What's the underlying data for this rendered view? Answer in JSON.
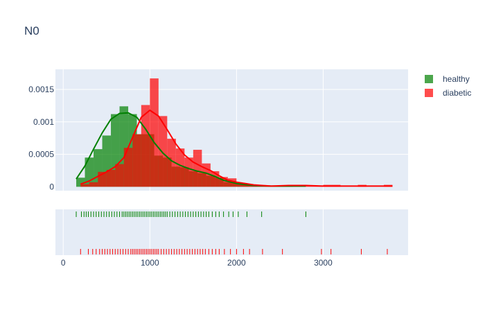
{
  "chart_data": {
    "type": "histogram",
    "title": "N0",
    "xlabel": "",
    "ylabel": "",
    "xlim": [
      -90,
      3980
    ],
    "ylim": [
      -6e-05,
      0.00181
    ],
    "x_ticks": [
      0,
      1000,
      2000,
      3000
    ],
    "x_tick_labels": [
      "0",
      "1000",
      "2000",
      "3000"
    ],
    "y_ticks": [
      0,
      0.0005,
      0.001,
      0.0015
    ],
    "y_tick_labels": [
      "0",
      "0.0005",
      "0.001",
      "0.0015"
    ],
    "grid": true,
    "legend_position": "top-right",
    "bin_width": 100,
    "series": [
      {
        "name": "healthy",
        "color": "#008000",
        "bin_starts": [
          150,
          250,
          350,
          450,
          550,
          650,
          750,
          850,
          950,
          1050,
          1150,
          1250,
          1350,
          1450,
          1550,
          1650,
          1750,
          1850,
          1950,
          2050,
          2150,
          2250,
          2350,
          2450,
          2550
        ],
        "histogram": [
          0.00014,
          0.00045,
          0.00058,
          0.00079,
          0.00112,
          0.00124,
          0.00112,
          0.00081,
          0.00081,
          0.00048,
          0.00045,
          0.00031,
          0.0003,
          0.00024,
          0.00021,
          0.00017,
          0.00014,
          7e-05,
          6e-05,
          3e-05,
          3e-05,
          2e-05,
          1e-05,
          1e-05,
          1e-05
        ],
        "kde_x": [
          150,
          250,
          350,
          450,
          550,
          650,
          750,
          850,
          950,
          1050,
          1150,
          1250,
          1350,
          1450,
          1550,
          1650,
          1750,
          1850,
          2000,
          2200,
          2400,
          2600,
          2800
        ],
        "kde_y": [
          0.00012,
          0.00032,
          0.00058,
          0.00083,
          0.00104,
          0.00113,
          0.00114,
          0.00107,
          0.00089,
          0.00068,
          0.00052,
          0.0004,
          0.00033,
          0.00028,
          0.00024,
          0.00021,
          0.00016,
          0.0001,
          5e-05,
          2e-05,
          1e-05,
          1e-05,
          1e-05
        ],
        "rug": [
          150,
          210,
          240,
          265,
          290,
          320,
          350,
          380,
          410,
          440,
          470,
          500,
          530,
          560,
          590,
          620,
          650,
          680,
          700,
          720,
          740,
          760,
          780,
          800,
          820,
          840,
          860,
          880,
          900,
          920,
          940,
          960,
          980,
          1000,
          1020,
          1040,
          1060,
          1080,
          1100,
          1120,
          1140,
          1160,
          1180,
          1200,
          1230,
          1260,
          1290,
          1320,
          1350,
          1380,
          1410,
          1440,
          1470,
          1500,
          1530,
          1560,
          1590,
          1620,
          1650,
          1680,
          1720,
          1760,
          1800,
          1850,
          1910,
          1960,
          2020,
          2120,
          2290,
          2800
        ]
      },
      {
        "name": "diabetic",
        "color": "#ff0000",
        "bin_starts": [
          200,
          300,
          400,
          500,
          600,
          700,
          800,
          900,
          1000,
          1100,
          1200,
          1300,
          1400,
          1500,
          1600,
          1700,
          1800,
          1900,
          2000,
          2100,
          2200,
          2300,
          2400,
          2500,
          2600,
          2700,
          2800,
          2900,
          3000,
          3100,
          3400,
          3700
        ],
        "histogram": [
          4e-05,
          7e-05,
          0.00023,
          0.00026,
          0.00035,
          0.0006,
          0.00081,
          0.00126,
          0.00167,
          0.00109,
          0.00074,
          0.00059,
          0.00045,
          0.00057,
          0.00036,
          0.00024,
          0.00015,
          0.00013,
          6e-05,
          3e-05,
          3e-05,
          1e-05,
          1e-05,
          2e-05,
          1e-05,
          1e-05,
          2e-05,
          2e-05,
          3e-05,
          3e-05,
          3e-05,
          3e-05
        ],
        "kde_x": [
          200,
          300,
          400,
          500,
          600,
          700,
          800,
          900,
          1000,
          1100,
          1200,
          1300,
          1400,
          1500,
          1600,
          1700,
          1800,
          1900,
          2000,
          2200,
          2400,
          2600,
          2800,
          3000,
          3200,
          3400,
          3600,
          3800
        ],
        "kde_y": [
          4e-05,
          9e-05,
          0.00016,
          0.00023,
          0.00031,
          0.00045,
          0.00076,
          0.00107,
          0.00118,
          0.00109,
          0.00088,
          0.00066,
          0.00049,
          0.00038,
          0.00031,
          0.00025,
          0.00017,
          0.0001,
          7e-05,
          3e-05,
          1e-05,
          2e-05,
          2e-05,
          1e-05,
          1e-05,
          1e-05,
          1e-05,
          1e-05
        ],
        "rug": [
          200,
          290,
          340,
          380,
          420,
          450,
          480,
          510,
          540,
          570,
          600,
          630,
          660,
          690,
          720,
          750,
          780,
          800,
          820,
          840,
          860,
          880,
          900,
          920,
          940,
          960,
          980,
          1000,
          1020,
          1040,
          1060,
          1080,
          1100,
          1130,
          1160,
          1190,
          1220,
          1250,
          1280,
          1310,
          1340,
          1370,
          1400,
          1430,
          1460,
          1490,
          1520,
          1550,
          1580,
          1610,
          1640,
          1680,
          1720,
          1760,
          1800,
          1860,
          1930,
          2000,
          2080,
          2150,
          2300,
          2530,
          2980,
          3090,
          3440,
          3740
        ]
      }
    ]
  }
}
